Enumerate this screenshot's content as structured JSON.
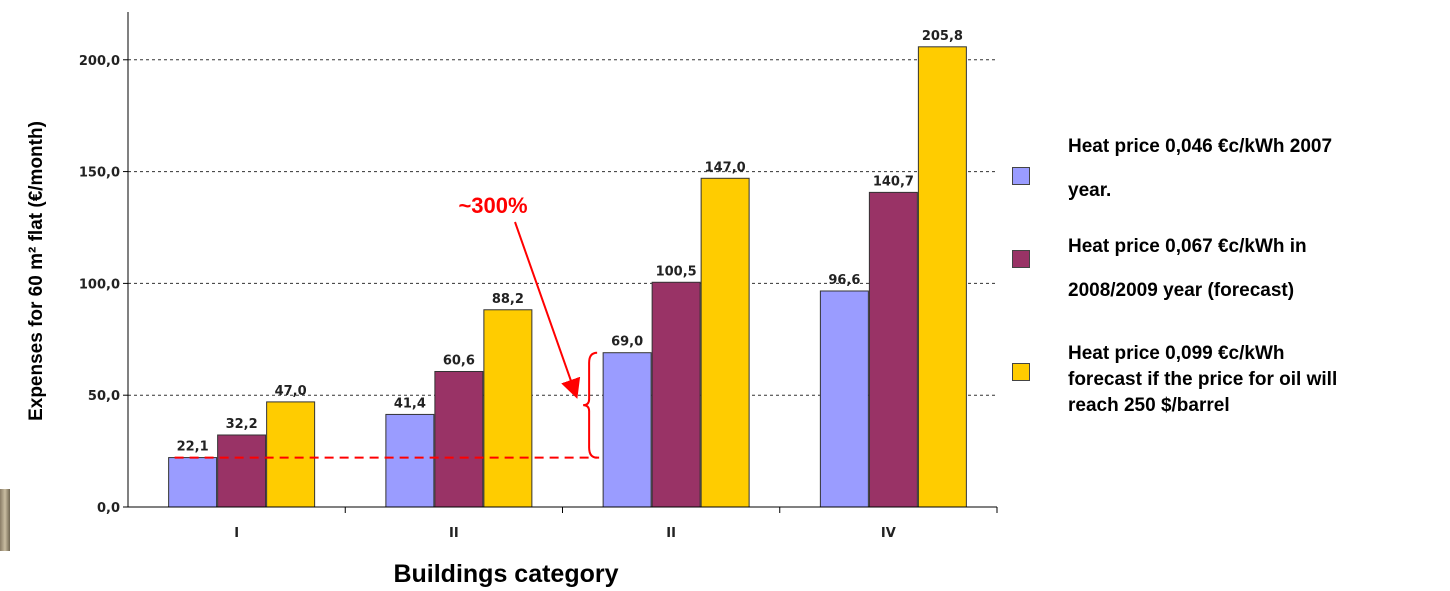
{
  "chart_data": {
    "type": "bar",
    "title": "",
    "xlabel": "Buildings category",
    "ylabel": "Expenses for 60 m² flat (€/month)",
    "categories": [
      "I",
      "II",
      "II",
      "IV"
    ],
    "ylim": [
      0,
      220
    ],
    "yticks": [
      "0,0",
      "50,0",
      "100,0",
      "150,0",
      "200,0"
    ],
    "ytick_values": [
      0,
      50,
      100,
      150,
      200
    ],
    "grid": "horizontal dashed",
    "series": [
      {
        "name": "Heat price 0,046 €c/kWh 2007 year.",
        "color": "#9a9cff",
        "values": [
          22.1,
          41.4,
          69.0,
          96.6
        ],
        "labels": [
          "22,1",
          "41,4",
          "69,0",
          "96,6"
        ]
      },
      {
        "name": "Heat price 0,067 €c/kWh in 2008/2009 year (forecast)",
        "color": "#993366",
        "values": [
          32.2,
          60.6,
          100.5,
          140.7
        ],
        "labels": [
          "32,2",
          "60,6",
          "100,5",
          "140,7"
        ]
      },
      {
        "name": "Heat price 0,099 €c/kWh forecast if the price for oil will reach 250 $/barrel",
        "color": "#ffcc00",
        "values": [
          47.0,
          88.2,
          147.0,
          205.8
        ],
        "labels": [
          "47,0",
          "88,2",
          "147,0",
          "205,8"
        ]
      }
    ],
    "annotation": {
      "text": "~300%",
      "color": "#ff0000",
      "reference_value": 22.1
    },
    "legend_position": "right"
  },
  "legend": {
    "items": [
      {
        "line1": "Heat price 0,046 €c/kWh 2007",
        "line2": "year.",
        "color": "#9a9cff"
      },
      {
        "line1": "Heat price 0,067 €c/kWh in",
        "line2": "2008/2009 year (forecast)",
        "color": "#993366"
      },
      {
        "line1": "Heat price 0,099 €c/kWh",
        "line2": "forecast if the price for oil will",
        "line3": "reach 250 $/barrel",
        "color": "#ffcc00"
      }
    ]
  }
}
